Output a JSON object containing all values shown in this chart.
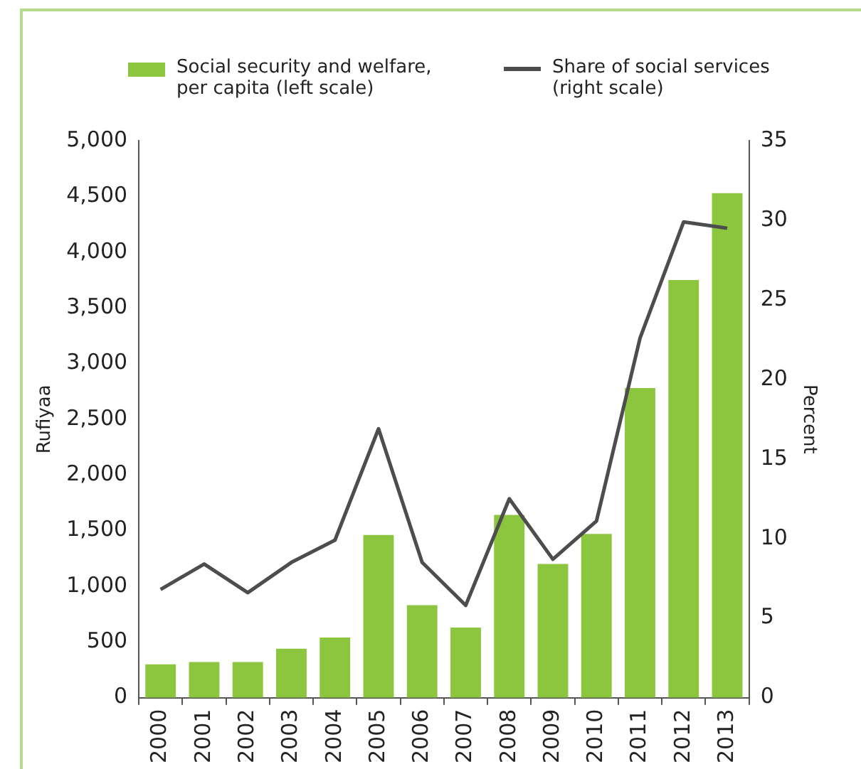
{
  "chart_data": {
    "type": "bar",
    "ylabel": "Rufiyaa",
    "y2label": "Percent",
    "legend": "top",
    "grid": false,
    "categories": [
      "2000",
      "2001",
      "2002",
      "2003",
      "2004",
      "2005",
      "2006",
      "2007",
      "2008",
      "2009",
      "2010",
      "2011",
      "2012",
      "2013"
    ],
    "ylim": [
      0,
      5000
    ],
    "yticks": [
      {
        "value": 0,
        "label": "0"
      },
      {
        "value": 500,
        "label": "500"
      },
      {
        "value": 1000,
        "label": "1,000"
      },
      {
        "value": 1500,
        "label": "1,500"
      },
      {
        "value": 2000,
        "label": "2,000"
      },
      {
        "value": 2500,
        "label": "2,500"
      },
      {
        "value": 3000,
        "label": "3,000"
      },
      {
        "value": 3500,
        "label": "3,500"
      },
      {
        "value": 4000,
        "label": "4,000"
      },
      {
        "value": 4500,
        "label": "4,500"
      },
      {
        "value": 5000,
        "label": "5,000"
      }
    ],
    "y2lim": [
      0,
      35
    ],
    "y2ticks": [
      0,
      5,
      10,
      15,
      20,
      25,
      30,
      35
    ],
    "series": [
      {
        "name": "Social security and welfare, per capita (left scale)",
        "color": "#8cc63f",
        "values": [
          300,
          320,
          320,
          440,
          540,
          1460,
          830,
          630,
          1640,
          1200,
          1470,
          2780,
          3750,
          4530
        ]
      },
      {
        "name": "Share of social services (right scale)",
        "type": "line",
        "axis": "y2",
        "color": "#4d4d4d",
        "values": [
          6.8,
          8.4,
          6.6,
          8.5,
          9.9,
          16.9,
          8.5,
          5.8,
          12.5,
          8.7,
          11.1,
          22.6,
          29.9,
          29.5
        ]
      }
    ]
  }
}
